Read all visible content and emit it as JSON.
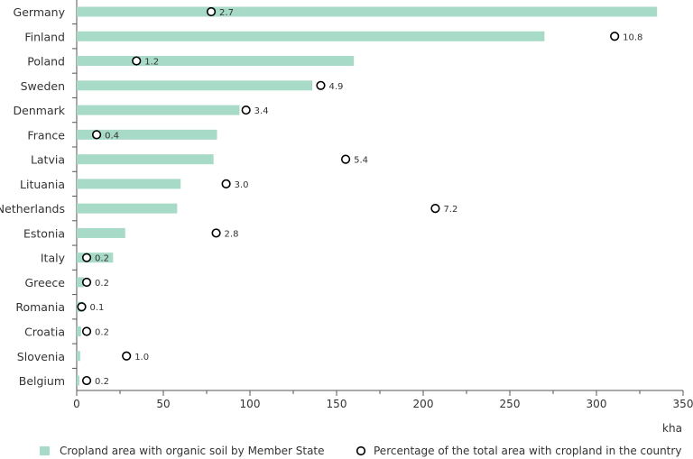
{
  "chart_data": {
    "type": "bar",
    "orientation": "horizontal",
    "categories": [
      "Germany",
      "Finland",
      "Poland",
      "Sweden",
      "Denmark",
      "France",
      "Latvia",
      "Lituania",
      "Netherlands",
      "Estonia",
      "Italy",
      "Greece",
      "Romania",
      "Croatia",
      "Slovenia",
      "Belgium"
    ],
    "series": [
      {
        "name": "Cropland area with organic soil by Member State",
        "type": "bar",
        "unit": "kha",
        "values": [
          335,
          270,
          160,
          136,
          94,
          81,
          79,
          60,
          58,
          28,
          21,
          4,
          4,
          2.5,
          2,
          1.5
        ]
      },
      {
        "name": "Percentage of the total area with cropland in the country",
        "type": "scatter",
        "unit": "%",
        "values": [
          2.7,
          10.8,
          1.2,
          4.9,
          3.4,
          0.4,
          5.4,
          3.0,
          7.2,
          2.8,
          0.2,
          0.2,
          0.1,
          0.2,
          1.0,
          0.2
        ],
        "labels": [
          "2.7",
          "10.8",
          "1.2",
          "4.9",
          "3.4",
          "0.4",
          "5.4",
          "3.0",
          "7.2",
          "2.8",
          "0.2",
          "0.2",
          "0.1",
          "0.2",
          "1.0",
          "0.2"
        ]
      }
    ],
    "xlabel": "kha",
    "xlim": [
      0,
      350
    ],
    "xticks": [
      "0",
      "50",
      "100",
      "150",
      "200",
      "250",
      "300",
      "350"
    ],
    "grid": false,
    "legend_position": "bottom",
    "colors": {
      "bar": "#a8dac8",
      "marker": "#000000",
      "axis": "#555555"
    }
  }
}
